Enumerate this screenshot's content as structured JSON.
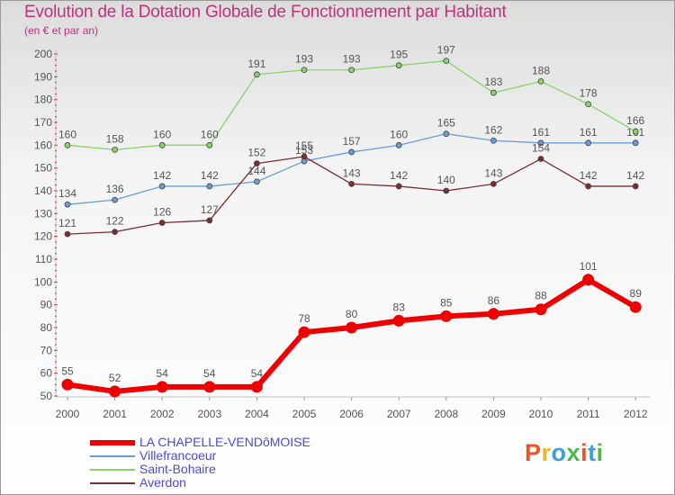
{
  "header": {
    "title": "Evolution de la Dotation Globale de Fonctionnement par Habitant",
    "subtitle": "(en € et par an)"
  },
  "logo": {
    "text": "Proxiti",
    "colors": [
      "#e8552b",
      "#e8b92b",
      "#3aa0d8",
      "#4cb848",
      "#e8552b",
      "#3aa0d8",
      "#4cb848"
    ]
  },
  "chart_data": {
    "type": "line",
    "title": "Evolution de la Dotation Globale de Fonctionnement par Habitant",
    "subtitle": "(en € et par an)",
    "x": [
      "2000",
      "2001",
      "2002",
      "2003",
      "2004",
      "2005",
      "2006",
      "2007",
      "2008",
      "2009",
      "2010",
      "2011",
      "2012"
    ],
    "ylim": [
      50,
      200
    ],
    "yticks": [
      50,
      60,
      70,
      80,
      90,
      100,
      110,
      120,
      130,
      140,
      150,
      160,
      170,
      180,
      190,
      200
    ],
    "grid": false,
    "legend_position": "bottom-left",
    "series": [
      {
        "name": "LA CHAPELLE-VENDôMOISE",
        "color": "#ee0000",
        "emphasis": true,
        "values": [
          55,
          52,
          54,
          54,
          54,
          78,
          80,
          83,
          85,
          86,
          88,
          101,
          89
        ]
      },
      {
        "name": "Villefrancoeur",
        "color": "#6a9ed2",
        "emphasis": false,
        "values": [
          134,
          136,
          142,
          142,
          144,
          153,
          157,
          160,
          165,
          162,
          161,
          161,
          161
        ]
      },
      {
        "name": "Saint-Bohaire",
        "color": "#88d36a",
        "emphasis": false,
        "values": [
          160,
          158,
          160,
          160,
          191,
          193,
          193,
          195,
          197,
          183,
          188,
          178,
          166
        ]
      },
      {
        "name": "Averdon",
        "color": "#7a2e2e",
        "emphasis": false,
        "values": [
          121,
          122,
          126,
          127,
          152,
          155,
          143,
          142,
          140,
          143,
          154,
          142,
          142
        ]
      }
    ]
  }
}
